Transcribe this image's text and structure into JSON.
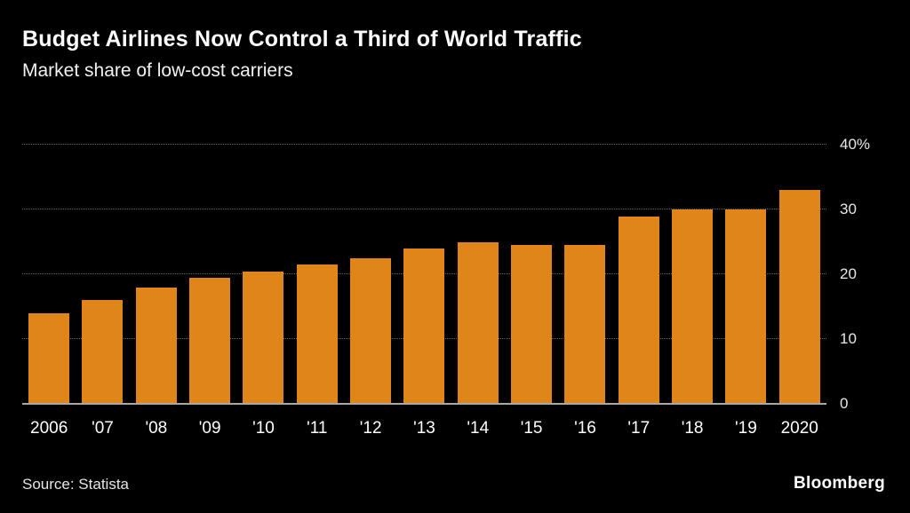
{
  "header": {
    "title": "Budget Airlines Now Control a Third of World Traffic",
    "subtitle": "Market share of low-cost carriers"
  },
  "footer": {
    "source": "Source: Statista",
    "brand": "Bloomberg"
  },
  "colors": {
    "background": "#000000",
    "bar": "#E08519",
    "grid": "#6a6a6a",
    "axis": "#a8a8a8",
    "text": "#ffffff"
  },
  "chart_data": {
    "type": "bar",
    "title": "Budget Airlines Now Control a Third of World Traffic",
    "subtitle": "Market share of low-cost carriers",
    "categories": [
      "2006",
      "'07",
      "'08",
      "'09",
      "'10",
      "'11",
      "'12",
      "'13",
      "'14",
      "'15",
      "'16",
      "'17",
      "'18",
      "'19",
      "2020"
    ],
    "values": [
      14,
      16,
      18,
      19.5,
      20.5,
      21.5,
      22.5,
      24,
      25,
      24.5,
      24.5,
      29,
      30,
      30,
      33
    ],
    "xlabel": "",
    "ylabel": "",
    "ylim": [
      0,
      40
    ],
    "yticks": [
      {
        "value": 0,
        "label": "0"
      },
      {
        "value": 10,
        "label": "10"
      },
      {
        "value": 20,
        "label": "20"
      },
      {
        "value": 30,
        "label": "30"
      },
      {
        "value": 40,
        "label": "40%"
      }
    ],
    "grid": "horizontal-dotted",
    "legend": "none",
    "bar_color": "#E08519"
  }
}
